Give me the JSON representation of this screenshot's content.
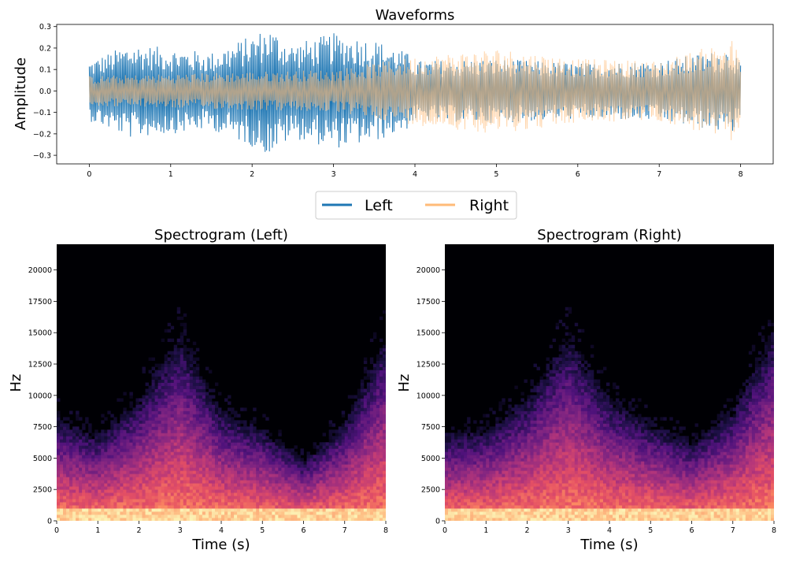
{
  "chart_data": [
    {
      "type": "line",
      "title": "Waveforms",
      "xlabel": "",
      "ylabel": "Amplitude",
      "xlim": [
        -0.4,
        8.4
      ],
      "ylim": [
        -0.34,
        0.31
      ],
      "x_ticks": [
        0,
        1,
        2,
        3,
        4,
        5,
        6,
        7,
        8
      ],
      "y_ticks": [
        -0.3,
        -0.2,
        -0.1,
        0.0,
        0.1,
        0.2,
        0.3
      ],
      "y_tick_labels": [
        "−0.3",
        "−0.2",
        "−0.1",
        "0.0",
        "0.1",
        "0.2",
        "0.3"
      ],
      "legend": [
        "Left",
        "Right"
      ],
      "legend_position": "below",
      "series": [
        {
          "name": "Left",
          "color": "#1f77b4",
          "envelope_time_s": [
            0,
            0.5,
            1,
            1.5,
            2,
            2.2,
            2.5,
            3,
            3.5,
            3.9,
            4,
            5,
            6,
            7,
            7.9,
            8
          ],
          "envelope_peak": [
            0.14,
            0.22,
            0.2,
            0.18,
            0.26,
            0.3,
            0.22,
            0.27,
            0.24,
            0.18,
            0.14,
            0.15,
            0.13,
            0.14,
            0.2,
            0.12
          ]
        },
        {
          "name": "Right",
          "color": "#ffbb78",
          "envelope_time_s": [
            0,
            1,
            2,
            3,
            4,
            5,
            6,
            7,
            7.9,
            8
          ],
          "envelope_peak": [
            0.07,
            0.08,
            0.09,
            0.1,
            0.16,
            0.2,
            0.15,
            0.14,
            0.24,
            0.15
          ]
        }
      ]
    },
    {
      "type": "heatmap",
      "title": "Spectrogram (Left)",
      "xlabel": "Time (s)",
      "ylabel": "Hz",
      "xlim": [
        0,
        8
      ],
      "ylim": [
        0,
        22050
      ],
      "x_ticks": [
        0,
        1,
        2,
        3,
        4,
        5,
        6,
        7,
        8
      ],
      "y_ticks": [
        0,
        2500,
        5000,
        7500,
        10000,
        12500,
        15000,
        17500,
        20000
      ],
      "colormap": "magma",
      "energy_reach_hz_by_time": {
        "time_s": [
          0,
          1,
          2,
          3,
          4,
          5,
          6,
          7,
          8
        ],
        "freq_hz": [
          8500,
          7000,
          10000,
          15000,
          9000,
          7500,
          5000,
          8000,
          15000
        ]
      }
    },
    {
      "type": "heatmap",
      "title": "Spectrogram (Right)",
      "xlabel": "Time (s)",
      "ylabel": "Hz",
      "xlim": [
        0,
        8
      ],
      "ylim": [
        0,
        22050
      ],
      "x_ticks": [
        0,
        1,
        2,
        3,
        4,
        5,
        6,
        7,
        8
      ],
      "y_ticks": [
        0,
        2500,
        5000,
        7500,
        10000,
        12500,
        15000,
        17500,
        20000
      ],
      "colormap": "magma",
      "energy_reach_hz_by_time": {
        "time_s": [
          0,
          1,
          2,
          3,
          4,
          5,
          6,
          7,
          8
        ],
        "freq_hz": [
          7000,
          7500,
          10000,
          15000,
          10000,
          8000,
          6500,
          9000,
          15500
        ]
      }
    }
  ]
}
